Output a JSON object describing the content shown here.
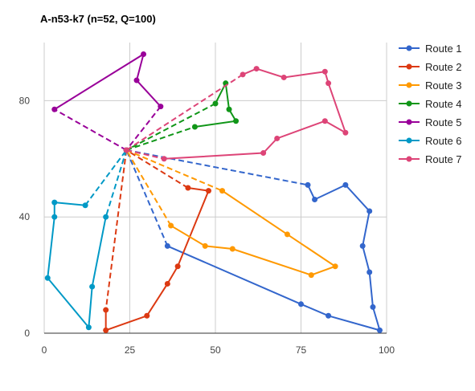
{
  "chart_data": {
    "type": "line",
    "title": "A-n53-k7 (n=52, Q=100)",
    "xlabel": "",
    "ylabel": "",
    "xlim": [
      0,
      100
    ],
    "ylim": [
      0,
      100
    ],
    "x_ticks": [
      0,
      25,
      50,
      75,
      100
    ],
    "y_ticks": [
      0,
      40,
      80
    ],
    "grid": true,
    "legend_position": "right",
    "depot": [
      24,
      63
    ],
    "series": [
      {
        "name": "Route 1",
        "color": "#3366cc",
        "points": [
          [
            24,
            63
          ],
          [
            77,
            51
          ],
          [
            79,
            46
          ],
          [
            88,
            51
          ],
          [
            95,
            42
          ],
          [
            93,
            30
          ],
          [
            95,
            21
          ],
          [
            96,
            9
          ],
          [
            98,
            1
          ],
          [
            83,
            6
          ],
          [
            75,
            10
          ],
          [
            36,
            30
          ],
          [
            24,
            63
          ]
        ]
      },
      {
        "name": "Route 2",
        "color": "#dc3912",
        "points": [
          [
            24,
            63
          ],
          [
            18,
            8
          ],
          [
            18,
            1
          ],
          [
            30,
            6
          ],
          [
            36,
            17
          ],
          [
            39,
            23
          ],
          [
            48,
            49
          ],
          [
            42,
            50
          ],
          [
            24,
            63
          ]
        ]
      },
      {
        "name": "Route 3",
        "color": "#ff9900",
        "points": [
          [
            24,
            63
          ],
          [
            52,
            49
          ],
          [
            71,
            34
          ],
          [
            85,
            23
          ],
          [
            78,
            20
          ],
          [
            55,
            29
          ],
          [
            47,
            30
          ],
          [
            37,
            37
          ],
          [
            24,
            63
          ]
        ]
      },
      {
        "name": "Route 4",
        "color": "#109618",
        "points": [
          [
            24,
            63
          ],
          [
            44,
            71
          ],
          [
            56,
            73
          ],
          [
            54,
            77
          ],
          [
            53,
            86
          ],
          [
            50,
            79
          ],
          [
            24,
            63
          ]
        ]
      },
      {
        "name": "Route 5",
        "color": "#990099",
        "points": [
          [
            24,
            63
          ],
          [
            3,
            77
          ],
          [
            29,
            96
          ],
          [
            27,
            87
          ],
          [
            34,
            78
          ],
          [
            24,
            63
          ]
        ]
      },
      {
        "name": "Route 6",
        "color": "#0099c6",
        "points": [
          [
            24,
            63
          ],
          [
            18,
            40
          ],
          [
            14,
            16
          ],
          [
            13,
            2
          ],
          [
            1,
            19
          ],
          [
            3,
            40
          ],
          [
            3,
            45
          ],
          [
            12,
            44
          ],
          [
            24,
            63
          ]
        ]
      },
      {
        "name": "Route 7",
        "color": "#dd4477",
        "points": [
          [
            24,
            63
          ],
          [
            35,
            60
          ],
          [
            64,
            62
          ],
          [
            68,
            67
          ],
          [
            82,
            73
          ],
          [
            88,
            69
          ],
          [
            83,
            86
          ],
          [
            82,
            90
          ],
          [
            70,
            88
          ],
          [
            62,
            91
          ],
          [
            58,
            89
          ],
          [
            24,
            63
          ]
        ]
      }
    ]
  }
}
